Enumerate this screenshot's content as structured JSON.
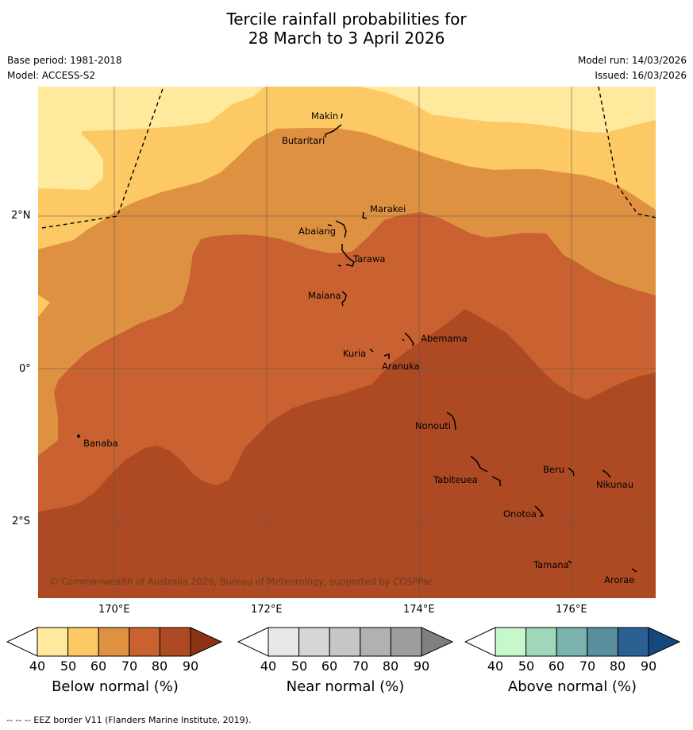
{
  "header": {
    "title_line1": "Tercile rainfall probabilities for",
    "title_line2": "28 March to 3 April 2026",
    "base_period": "Base period: 1981-2018",
    "model": "Model: ACCESS-S2",
    "model_run": "Model run: 14/03/2026",
    "issued": "Issued: 16/03/2026"
  },
  "map": {
    "lat_labels": [
      "2°N",
      "0°",
      "2°S"
    ],
    "lon_labels": [
      "170°E",
      "172°E",
      "174°E",
      "176°E"
    ],
    "places": [
      "Makin",
      "Butaritari",
      "Marakei",
      "Abaiang",
      "Tarawa",
      "Maiana",
      "Abemama",
      "Kuria",
      "Aranuka",
      "Nonouti",
      "Banaba",
      "Tabiteuea",
      "Beru",
      "Nikunau",
      "Onotoa",
      "Tamana",
      "Arorae"
    ],
    "copyright": "© Commonwealth of Australia 2026, Bureau of Meteorology, supported by COSPPac",
    "band_colors": [
      "#fee99c",
      "#fdc965",
      "#df9142",
      "#c96230",
      "#ad4a23"
    ]
  },
  "legend": {
    "tick_labels": [
      "40",
      "50",
      "60",
      "70",
      "80",
      "90"
    ],
    "below": {
      "title": "Below normal (%)",
      "colors": [
        "#ffffff",
        "#fee99c",
        "#fdc965",
        "#df9142",
        "#c96230",
        "#ad4a23",
        "#8b3217"
      ]
    },
    "near": {
      "title": "Near normal (%)",
      "colors": [
        "#ffffff",
        "#e7e7e7",
        "#d6d6d6",
        "#c6c6c6",
        "#b1b1b1",
        "#9e9e9e",
        "#808080"
      ]
    },
    "above": {
      "title": "Above normal (%)",
      "colors": [
        "#ffffff",
        "#c7f8cc",
        "#a1d7b9",
        "#7ab3ad",
        "#5a8f9e",
        "#2b6095",
        "#17487c"
      ]
    }
  },
  "footer": {
    "eez_note": "-- -- -- EEZ border V11 (Flanders Marine Institute, 2019)."
  }
}
